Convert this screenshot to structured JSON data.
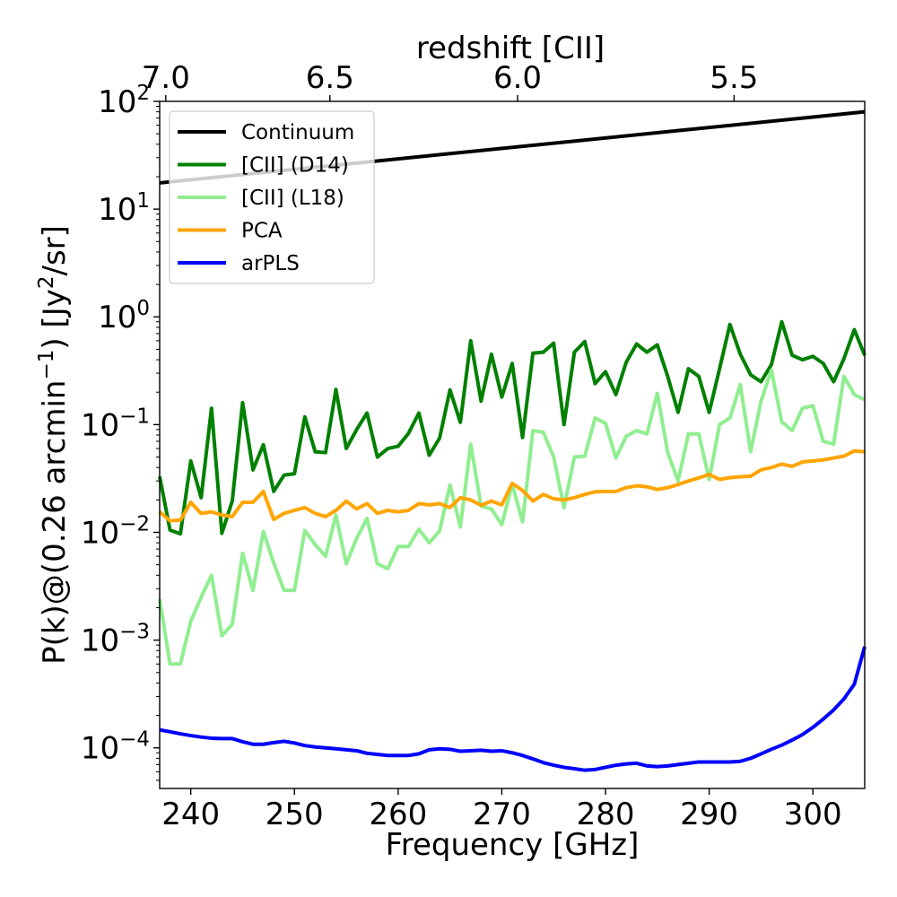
{
  "chart_data": {
    "type": "line",
    "title": "",
    "xlabel": "Frequency [GHz]",
    "ylabel": "P(k)@(0.26 arcmin",
    "ylabel_exp": "−1",
    "ylabel_mid": ") [Jy",
    "ylabel_exp2": "2",
    "ylabel_end": "/sr]",
    "top_axis_label": "redshift [CII]",
    "xlim": [
      237,
      305
    ],
    "ylim": [
      4.2e-05,
      100
    ],
    "yscale": "log",
    "legend_position": "top-left",
    "x_ticks": [
      {
        "value": 240,
        "label": "240"
      },
      {
        "value": 250,
        "label": "250"
      },
      {
        "value": 260,
        "label": "260"
      },
      {
        "value": 270,
        "label": "270"
      },
      {
        "value": 280,
        "label": "280"
      },
      {
        "value": 290,
        "label": "290"
      },
      {
        "value": 300,
        "label": "300"
      }
    ],
    "top_ticks": [
      {
        "value": 237.59,
        "label": "7.0"
      },
      {
        "value": 253.42,
        "label": "6.5"
      },
      {
        "value": 271.52,
        "label": "6.0"
      },
      {
        "value": 292.4,
        "label": "5.5"
      }
    ],
    "y_ticks": [
      {
        "value": 0.0001,
        "base": "10",
        "exp": "−4"
      },
      {
        "value": 0.001,
        "base": "10",
        "exp": "−3"
      },
      {
        "value": 0.01,
        "base": "10",
        "exp": "−2"
      },
      {
        "value": 0.1,
        "base": "10",
        "exp": "−1"
      },
      {
        "value": 1,
        "base": "10",
        "exp": "0"
      },
      {
        "value": 10,
        "base": "10",
        "exp": "1"
      },
      {
        "value": 100,
        "base": "10",
        "exp": "2"
      }
    ],
    "x": [
      237,
      238,
      239,
      240,
      241,
      242,
      243,
      244,
      245,
      246,
      247,
      248,
      249,
      250,
      251,
      252,
      253,
      254,
      255,
      256,
      257,
      258,
      259,
      260,
      261,
      262,
      263,
      264,
      265,
      266,
      267,
      268,
      269,
      270,
      271,
      272,
      273,
      274,
      275,
      276,
      277,
      278,
      279,
      280,
      281,
      282,
      283,
      284,
      285,
      286,
      287,
      288,
      289,
      290,
      291,
      292,
      293,
      294,
      295,
      296,
      297,
      298,
      299,
      300,
      301,
      302,
      303,
      304,
      305
    ],
    "series": [
      {
        "name": "Continuum",
        "color": "#000000",
        "x": [
          237,
          305
        ],
        "values": [
          17.5,
          80
        ]
      },
      {
        "name": "[CII] (D14)",
        "color": "#008000",
        "values": [
          0.033,
          0.0105,
          0.0097,
          0.046,
          0.021,
          0.142,
          0.0098,
          0.0195,
          0.16,
          0.038,
          0.065,
          0.024,
          0.034,
          0.035,
          0.118,
          0.056,
          0.055,
          0.212,
          0.06,
          0.09,
          0.128,
          0.05,
          0.06,
          0.063,
          0.083,
          0.128,
          0.052,
          0.075,
          0.21,
          0.105,
          0.6,
          0.165,
          0.45,
          0.18,
          0.37,
          0.076,
          0.46,
          0.47,
          0.57,
          0.1,
          0.47,
          0.59,
          0.24,
          0.31,
          0.19,
          0.38,
          0.56,
          0.47,
          0.55,
          0.28,
          0.13,
          0.33,
          0.28,
          0.13,
          0.33,
          0.85,
          0.45,
          0.29,
          0.25,
          0.36,
          0.9,
          0.44,
          0.4,
          0.43,
          0.37,
          0.25,
          0.41,
          0.76,
          0.44
        ]
      },
      {
        "name": "[CII] (L18)",
        "color": "#90ee90",
        "values": [
          0.0024,
          0.0006,
          0.0006,
          0.0015,
          0.0025,
          0.004,
          0.0011,
          0.0014,
          0.0064,
          0.0029,
          0.0102,
          0.0052,
          0.0029,
          0.0029,
          0.0104,
          0.0077,
          0.006,
          0.0145,
          0.0051,
          0.0088,
          0.0135,
          0.0051,
          0.0046,
          0.0074,
          0.0074,
          0.0107,
          0.008,
          0.0103,
          0.0275,
          0.0112,
          0.066,
          0.0175,
          0.0165,
          0.0118,
          0.028,
          0.0125,
          0.088,
          0.085,
          0.05,
          0.017,
          0.05,
          0.051,
          0.115,
          0.103,
          0.049,
          0.078,
          0.088,
          0.082,
          0.195,
          0.055,
          0.03,
          0.082,
          0.082,
          0.031,
          0.1,
          0.115,
          0.235,
          0.056,
          0.165,
          0.32,
          0.106,
          0.088,
          0.142,
          0.15,
          0.07,
          0.066,
          0.28,
          0.19,
          0.17
        ]
      },
      {
        "name": "PCA",
        "color": "#ffa500",
        "values": [
          0.0155,
          0.0128,
          0.013,
          0.019,
          0.015,
          0.0155,
          0.0145,
          0.014,
          0.019,
          0.019,
          0.024,
          0.0132,
          0.015,
          0.016,
          0.017,
          0.015,
          0.014,
          0.016,
          0.0195,
          0.0165,
          0.0185,
          0.015,
          0.016,
          0.0155,
          0.016,
          0.0185,
          0.018,
          0.0185,
          0.017,
          0.021,
          0.02,
          0.0178,
          0.0195,
          0.018,
          0.0285,
          0.0245,
          0.0195,
          0.0225,
          0.0205,
          0.02,
          0.021,
          0.0225,
          0.0238,
          0.024,
          0.024,
          0.026,
          0.027,
          0.0265,
          0.025,
          0.026,
          0.0278,
          0.03,
          0.032,
          0.0345,
          0.031,
          0.0322,
          0.0328,
          0.0332,
          0.038,
          0.04,
          0.043,
          0.041,
          0.045,
          0.046,
          0.047,
          0.049,
          0.051,
          0.057,
          0.056
        ]
      },
      {
        "name": "arPLS",
        "color": "#0000ff",
        "values": [
          0.000147,
          0.000141,
          0.000135,
          0.00013,
          0.000126,
          0.000123,
          0.000122,
          0.000122,
          0.000114,
          0.000108,
          0.000108,
          0.000112,
          0.000115,
          0.000111,
          0.000105,
          0.000102,
          0.0001,
          9.8e-05,
          9.6e-05,
          9.4e-05,
          8.9e-05,
          8.7e-05,
          8.5e-05,
          8.5e-05,
          8.5e-05,
          8.8e-05,
          9.6e-05,
          9.8e-05,
          9.7e-05,
          9.3e-05,
          9.4e-05,
          9.5e-05,
          9.3e-05,
          9.4e-05,
          9e-05,
          8.5e-05,
          7.9e-05,
          7.3e-05,
          6.9e-05,
          6.6e-05,
          6.4e-05,
          6.2e-05,
          6.3e-05,
          6.6e-05,
          6.9e-05,
          7.1e-05,
          7.2e-05,
          6.8e-05,
          6.7e-05,
          6.8e-05,
          7e-05,
          7.2e-05,
          7.4e-05,
          7.4e-05,
          7.4e-05,
          7.4e-05,
          7.5e-05,
          8e-05,
          8.8e-05,
          9.7e-05,
          0.000106,
          0.000118,
          0.000133,
          0.000155,
          0.000185,
          0.000225,
          0.000285,
          0.00039,
          0.00087
        ]
      }
    ]
  }
}
